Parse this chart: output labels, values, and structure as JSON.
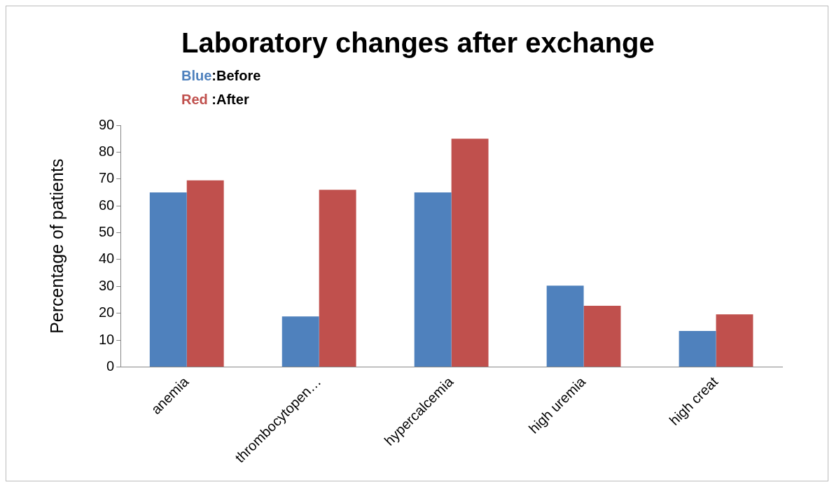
{
  "chart_data": {
    "type": "bar",
    "title": "Laboratory changes after exchange",
    "ylabel": "Percentage of patients",
    "annotations": [
      "Blue:Before",
      "Red :After"
    ],
    "categories": [
      "anemia",
      "thrombocytopen…",
      "hypercalcemia",
      "high uremia",
      "high creat"
    ],
    "series": [
      {
        "color": "#4f81bd",
        "values": [
          65,
          18.8,
          65,
          30.3,
          13.4
        ]
      },
      {
        "color": "#c0504d",
        "values": [
          69.5,
          66,
          85,
          22.8,
          19.6
        ]
      }
    ],
    "ylim": [
      0,
      90
    ],
    "yticks": [
      0,
      10,
      20,
      30,
      40,
      50,
      60,
      70,
      80,
      90
    ],
    "grid": false,
    "legend": false
  }
}
